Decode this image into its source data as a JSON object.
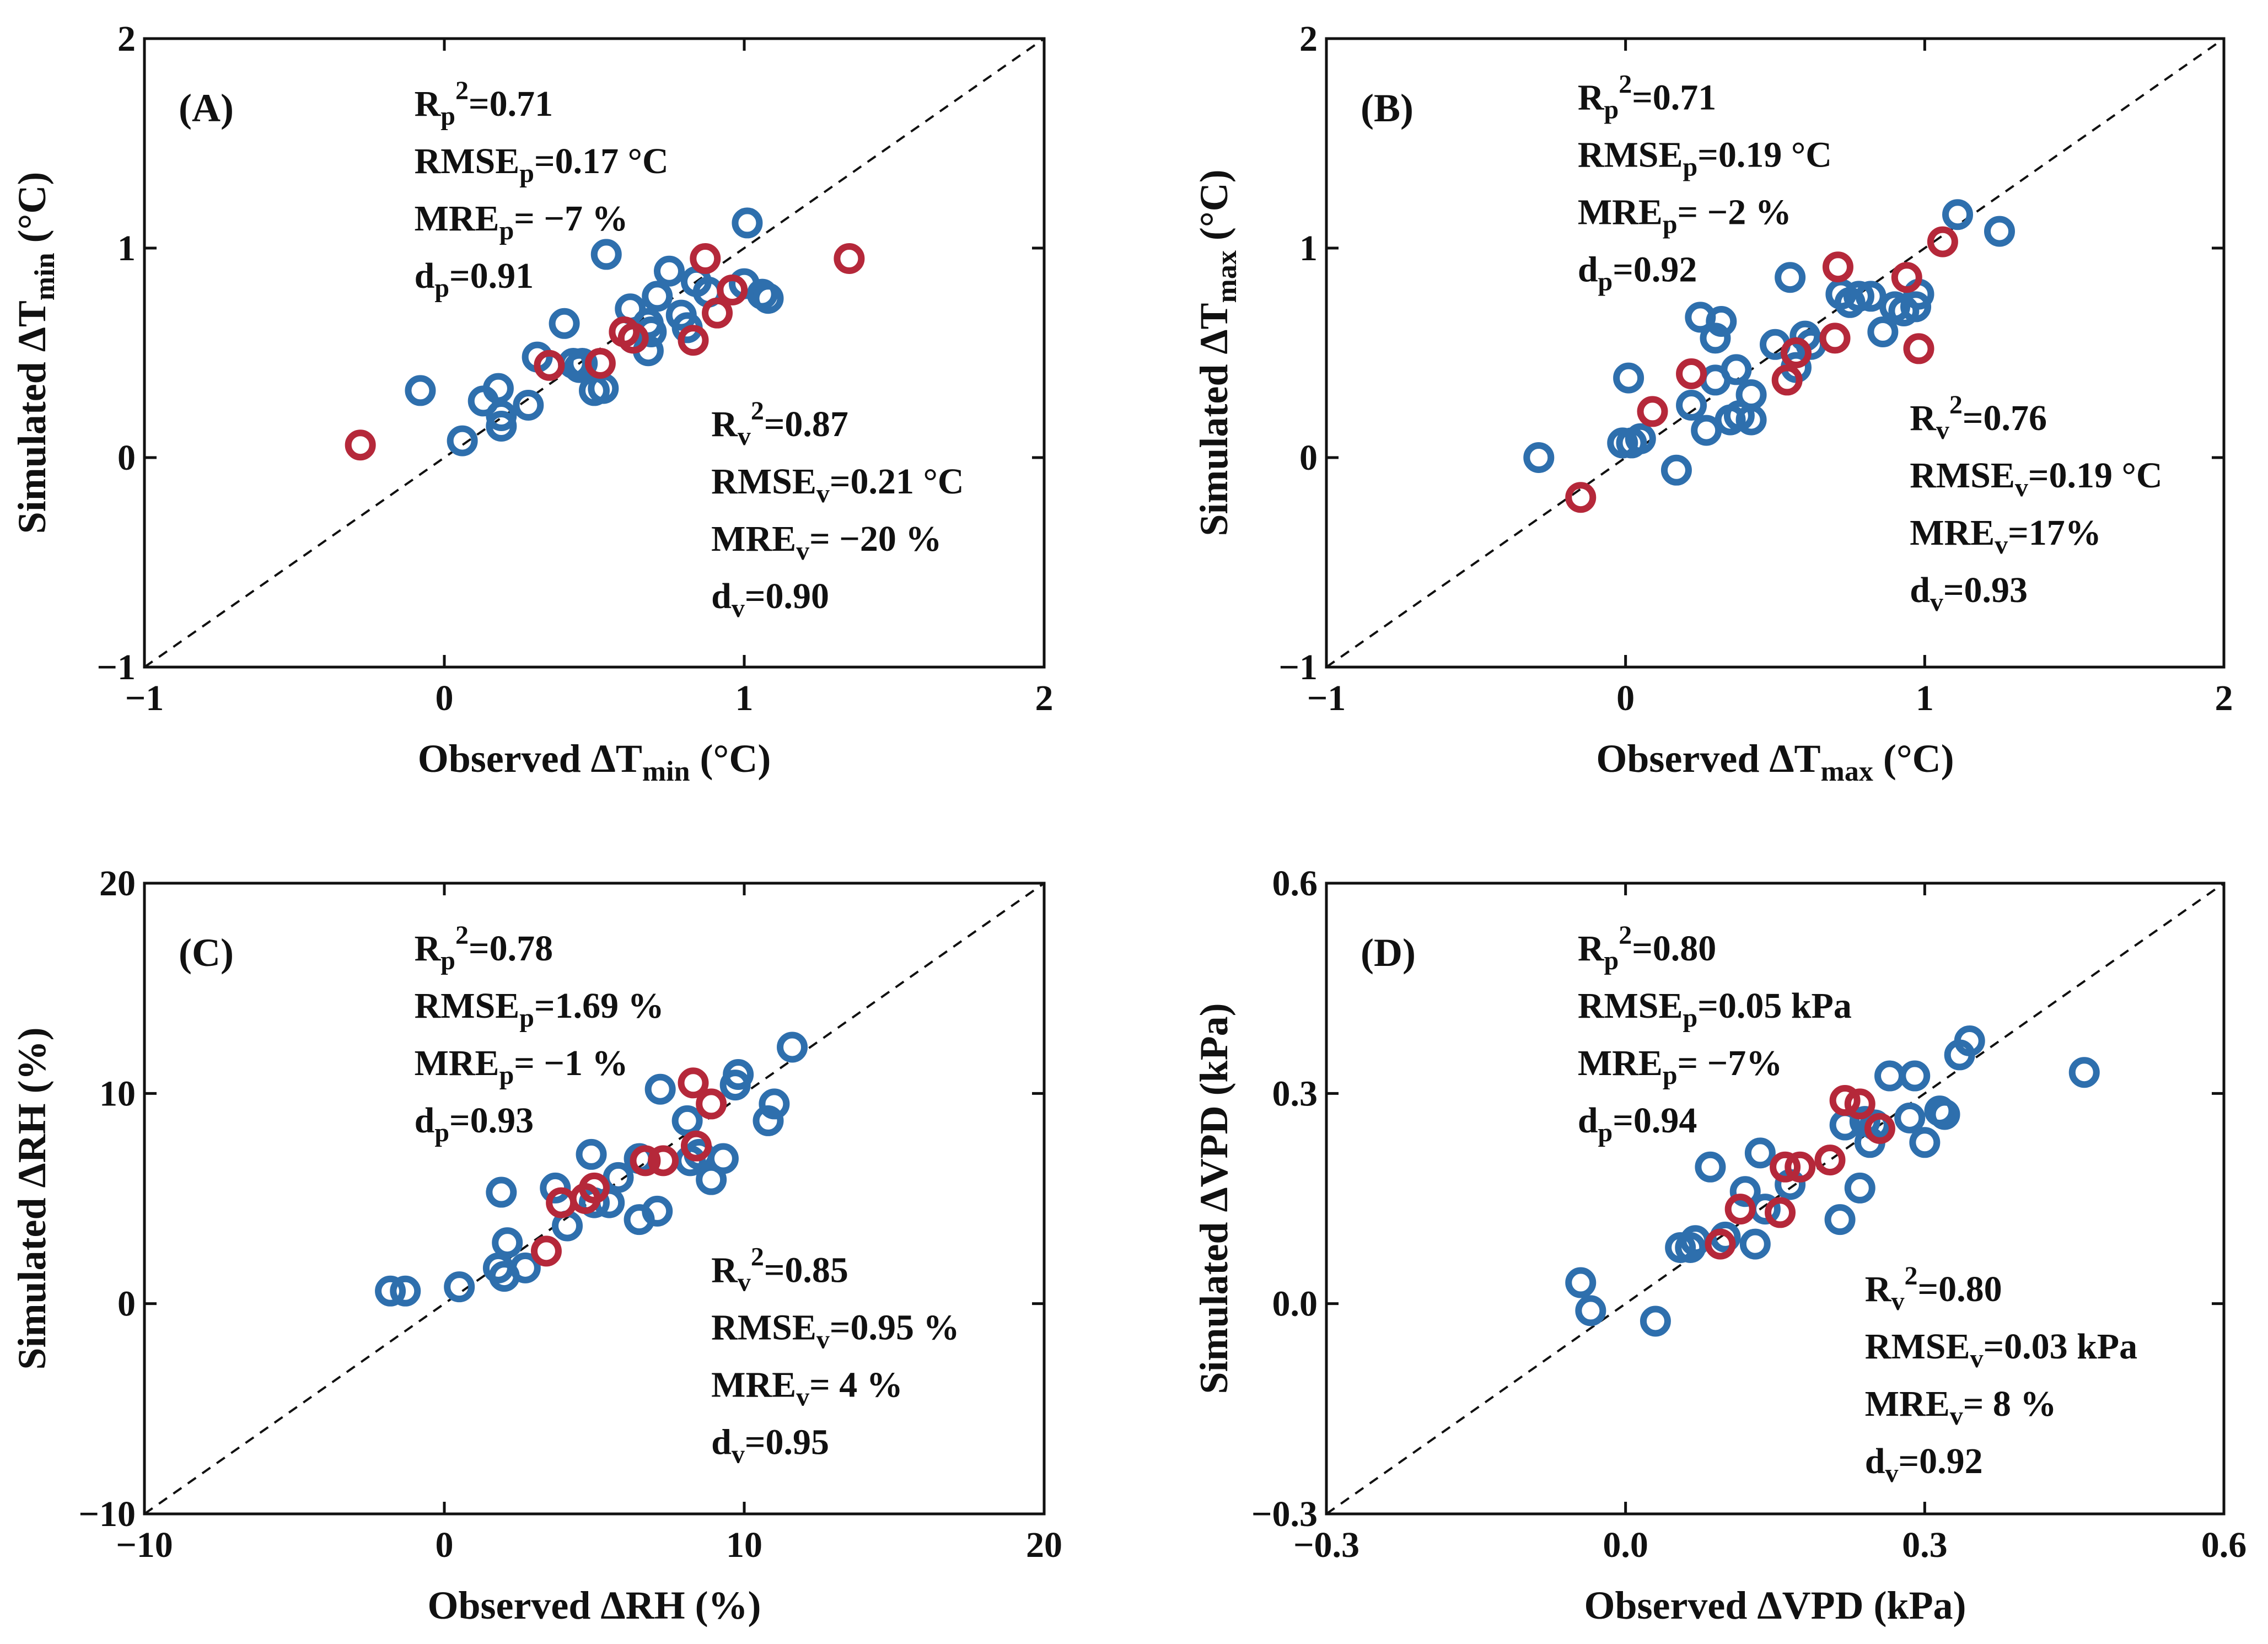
{
  "chart_data": [
    {
      "type": "scatter",
      "panel_label": "(A)",
      "xlabel": {
        "main": "Observed ΔT",
        "sub": "min",
        "unit": " (°C)"
      },
      "ylabel": {
        "main": "Simulated ΔT",
        "sub": "min",
        "unit": " (°C)"
      },
      "xlim": [
        -1,
        2
      ],
      "ylim": [
        -1,
        2
      ],
      "xticks": [
        -1,
        0,
        1,
        2
      ],
      "yticks": [
        -1,
        0,
        1,
        2
      ],
      "xtick_labels": [
        "−1",
        "0",
        "1",
        "2"
      ],
      "ytick_labels": [
        "−1",
        "0",
        "1",
        "2"
      ],
      "stats_p": [
        {
          "base": "R",
          "sub": "p",
          "sup": "2",
          "rest": "=0.71"
        },
        {
          "base": "RMSE",
          "sub": "p",
          "rest": "=0.17 °C"
        },
        {
          "base": "MRE",
          "sub": "p",
          "rest": "= −7 %"
        },
        {
          "base": "d",
          "sub": "p",
          "rest": "=0.91"
        }
      ],
      "stats_v": [
        {
          "base": "R",
          "sub": "v",
          "sup": "2",
          "rest": "=0.87"
        },
        {
          "base": "RMSE",
          "sub": "v",
          "rest": "=0.21 °C"
        },
        {
          "base": "MRE",
          "sub": "v",
          "rest": "= −20 %"
        },
        {
          "base": "d",
          "sub": "v",
          "rest": "=0.90"
        }
      ],
      "series": [
        {
          "name": "blue",
          "color": "#2e6fad",
          "x": [
            -0.08,
            0.06,
            0.13,
            0.18,
            0.19,
            0.19,
            0.28,
            0.31,
            0.4,
            0.43,
            0.46,
            0.5,
            0.53,
            0.54,
            0.62,
            0.63,
            0.68,
            0.68,
            0.71,
            0.75,
            0.79,
            0.81,
            0.84,
            0.88,
            1.0,
            1.01,
            1.06,
            1.08,
            0.69,
            0.45
          ],
          "y": [
            0.32,
            0.08,
            0.27,
            0.33,
            0.15,
            0.2,
            0.25,
            0.48,
            0.64,
            0.45,
            0.45,
            0.32,
            0.33,
            0.97,
            0.71,
            0.57,
            0.51,
            0.64,
            0.77,
            0.89,
            0.68,
            0.62,
            0.84,
            0.79,
            0.83,
            1.12,
            0.78,
            0.76,
            0.6,
            0.43
          ]
        },
        {
          "name": "red",
          "color": "#b5283a",
          "x": [
            -0.28,
            0.35,
            0.52,
            0.6,
            0.63,
            0.83,
            0.87,
            0.91,
            0.96,
            1.35
          ],
          "y": [
            0.06,
            0.44,
            0.45,
            0.6,
            0.57,
            0.56,
            0.95,
            0.69,
            0.8,
            0.95
          ]
        }
      ]
    },
    {
      "type": "scatter",
      "panel_label": "(B)",
      "xlabel": {
        "main": "Observed ΔT",
        "sub": "max",
        "unit": " (°C)"
      },
      "ylabel": {
        "main": "Simulated ΔT",
        "sub": "max",
        "unit": " (°C)"
      },
      "xlim": [
        -1,
        2
      ],
      "ylim": [
        -1,
        2
      ],
      "xticks": [
        -1,
        0,
        1,
        2
      ],
      "yticks": [
        -1,
        0,
        1,
        2
      ],
      "xtick_labels": [
        "−1",
        "0",
        "1",
        "2"
      ],
      "ytick_labels": [
        "−1",
        "0",
        "1",
        "2"
      ],
      "stats_p": [
        {
          "base": "R",
          "sub": "p",
          "sup": "2",
          "rest": "=0.71"
        },
        {
          "base": "RMSE",
          "sub": "p",
          "rest": "=0.19 °C"
        },
        {
          "base": "MRE",
          "sub": "p",
          "rest": "= −2 %"
        },
        {
          "base": "d",
          "sub": "p",
          "rest": "=0.92"
        }
      ],
      "stats_v": [
        {
          "base": "R",
          "sub": "v",
          "sup": "2",
          "rest": "=0.76"
        },
        {
          "base": "RMSE",
          "sub": "v",
          "rest": "=0.19 °C"
        },
        {
          "base": "MRE",
          "sub": "v",
          "rest": "=17%"
        },
        {
          "base": "d",
          "sub": "v",
          "rest": "=0.93"
        }
      ],
      "series": [
        {
          "name": "blue",
          "color": "#2e6fad",
          "x": [
            -0.29,
            -0.01,
            0.01,
            0.02,
            0.05,
            0.17,
            0.22,
            0.25,
            0.27,
            0.3,
            0.32,
            0.35,
            0.37,
            0.38,
            0.42,
            0.5,
            0.55,
            0.57,
            0.6,
            0.62,
            0.72,
            0.75,
            0.78,
            0.82,
            0.86,
            0.9,
            0.93,
            0.97,
            0.98,
            1.11,
            1.25,
            0.42,
            0.3
          ],
          "y": [
            0.0,
            0.07,
            0.38,
            0.07,
            0.09,
            -0.06,
            0.25,
            0.67,
            0.13,
            0.57,
            0.65,
            0.18,
            0.42,
            0.2,
            0.18,
            0.54,
            0.86,
            0.43,
            0.58,
            0.54,
            0.78,
            0.74,
            0.77,
            0.77,
            0.6,
            0.72,
            0.7,
            0.72,
            0.78,
            1.16,
            1.08,
            0.3,
            0.37
          ]
        },
        {
          "name": "red",
          "color": "#b5283a",
          "x": [
            -0.15,
            0.09,
            0.22,
            0.54,
            0.57,
            0.7,
            0.71,
            0.94,
            0.98,
            1.06
          ],
          "y": [
            -0.19,
            0.22,
            0.4,
            0.37,
            0.5,
            0.57,
            0.91,
            0.86,
            0.52,
            1.03
          ]
        }
      ]
    },
    {
      "type": "scatter",
      "panel_label": "(C)",
      "xlabel": {
        "main": "Observed ΔRH (%)"
      },
      "ylabel": {
        "main": "Simulated ΔRH (%)"
      },
      "xlim": [
        -10,
        20
      ],
      "ylim": [
        -10,
        20
      ],
      "xticks": [
        -10,
        0,
        10,
        20
      ],
      "yticks": [
        -10,
        0,
        10,
        20
      ],
      "xtick_labels": [
        "−10",
        "0",
        "10",
        "20"
      ],
      "ytick_labels": [
        "−10",
        "0",
        "10",
        "20"
      ],
      "stats_p": [
        {
          "base": "R",
          "sub": "p",
          "sup": "2",
          "rest": "=0.78"
        },
        {
          "base": "RMSE",
          "sub": "p",
          "rest": "=1.69 %"
        },
        {
          "base": "MRE",
          "sub": "p",
          "rest": "= −1 %"
        },
        {
          "base": "d",
          "sub": "p",
          "rest": "=0.93"
        }
      ],
      "stats_v": [
        {
          "base": "R",
          "sub": "v",
          "sup": "2",
          "rest": "=0.85"
        },
        {
          "base": "RMSE",
          "sub": "v",
          "rest": "=0.95 %"
        },
        {
          "base": "MRE",
          "sub": "v",
          "rest": "= 4 %"
        },
        {
          "base": "d",
          "sub": "v",
          "rest": "=0.95"
        }
      ],
      "series": [
        {
          "name": "blue",
          "color": "#2e6fad",
          "x": [
            -1.8,
            -1.3,
            0.5,
            1.8,
            1.9,
            2.0,
            2.1,
            2.7,
            3.7,
            4.1,
            4.9,
            5.5,
            5.8,
            6.5,
            6.5,
            7.1,
            7.2,
            8.1,
            8.2,
            8.5,
            8.9,
            9.3,
            9.7,
            9.8,
            10.8,
            11.0,
            11.6,
            5.0
          ],
          "y": [
            0.6,
            0.6,
            0.8,
            1.7,
            5.3,
            1.3,
            2.9,
            1.7,
            5.5,
            3.7,
            7.1,
            4.8,
            6.0,
            4.0,
            6.9,
            4.4,
            10.2,
            8.7,
            6.8,
            7.1,
            5.9,
            6.9,
            10.4,
            10.9,
            8.7,
            9.5,
            12.2,
            4.8
          ]
        },
        {
          "name": "red",
          "color": "#b5283a",
          "x": [
            3.4,
            3.9,
            4.7,
            5.0,
            6.7,
            7.3,
            8.3,
            8.4,
            8.9
          ],
          "y": [
            2.5,
            4.8,
            5.0,
            5.5,
            6.8,
            6.8,
            10.5,
            7.5,
            9.5
          ]
        }
      ]
    },
    {
      "type": "scatter",
      "panel_label": "(D)",
      "xlabel": {
        "main": "Observed ΔVPD (kPa)"
      },
      "ylabel": {
        "main": "Simulated ΔVPD (kPa)"
      },
      "xlim": [
        -0.3,
        0.6
      ],
      "ylim": [
        -0.3,
        0.6
      ],
      "xticks": [
        -0.3,
        0.0,
        0.3,
        0.6
      ],
      "yticks": [
        -0.3,
        0.0,
        0.3,
        0.6
      ],
      "xtick_labels": [
        "−0.3",
        "0.0",
        "0.3",
        "0.6"
      ],
      "ytick_labels": [
        "−0.3",
        "0.0",
        "0.3",
        "0.6"
      ],
      "stats_p": [
        {
          "base": "R",
          "sub": "p",
          "sup": "2",
          "rest": "=0.80"
        },
        {
          "base": "RMSE",
          "sub": "p",
          "rest": "=0.05 kPa"
        },
        {
          "base": "MRE",
          "sub": "p",
          "rest": "= −7%"
        },
        {
          "base": "d",
          "sub": "p",
          "rest": "=0.94"
        }
      ],
      "stats_v": [
        {
          "base": "R",
          "sub": "v",
          "sup": "2",
          "rest": "=0.80"
        },
        {
          "base": "RMSE",
          "sub": "v",
          "rest": "=0.03 kPa"
        },
        {
          "base": "MRE",
          "sub": "v",
          "rest": "= 8 %"
        },
        {
          "base": "d",
          "sub": "v",
          "rest": "=0.92"
        }
      ],
      "series": [
        {
          "name": "blue",
          "color": "#2e6fad",
          "x": [
            -0.045,
            -0.035,
            0.03,
            0.055,
            0.065,
            0.07,
            0.085,
            0.1,
            0.12,
            0.13,
            0.135,
            0.14,
            0.165,
            0.215,
            0.22,
            0.235,
            0.24,
            0.245,
            0.25,
            0.265,
            0.285,
            0.29,
            0.3,
            0.315,
            0.32,
            0.335,
            0.345,
            0.46
          ],
          "y": [
            0.03,
            -0.01,
            -0.025,
            0.08,
            0.08,
            0.09,
            0.195,
            0.095,
            0.16,
            0.085,
            0.215,
            0.135,
            0.17,
            0.12,
            0.255,
            0.165,
            0.26,
            0.23,
            0.255,
            0.325,
            0.265,
            0.325,
            0.23,
            0.275,
            0.27,
            0.355,
            0.375,
            0.33
          ]
        },
        {
          "name": "red",
          "color": "#b5283a",
          "x": [
            0.095,
            0.115,
            0.155,
            0.16,
            0.175,
            0.205,
            0.22,
            0.235,
            0.255
          ],
          "y": [
            0.085,
            0.135,
            0.13,
            0.195,
            0.195,
            0.205,
            0.29,
            0.285,
            0.25
          ]
        }
      ]
    }
  ]
}
